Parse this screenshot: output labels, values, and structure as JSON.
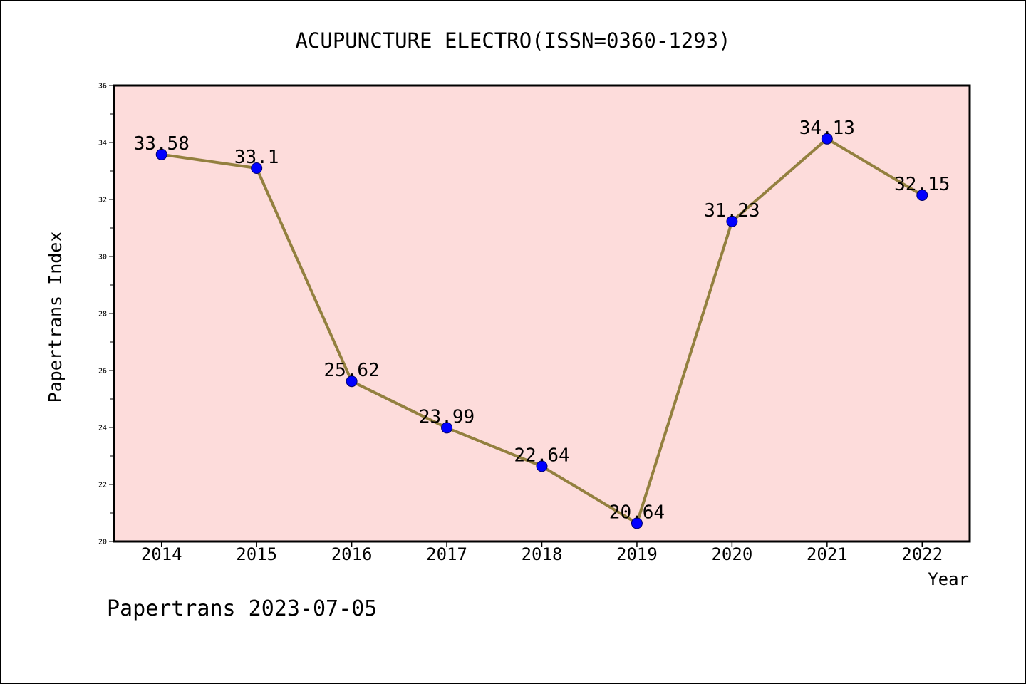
{
  "chart_data": {
    "type": "line",
    "title": "ACUPUNCTURE ELECTRO(ISSN=0360-1293)",
    "xlabel": "Year",
    "ylabel": "Papertrans Index",
    "categories": [
      "2014",
      "2015",
      "2016",
      "2017",
      "2018",
      "2019",
      "2020",
      "2021",
      "2022"
    ],
    "series": [
      {
        "values": [
          33.58,
          33.1,
          25.62,
          23.99,
          22.64,
          20.64,
          31.23,
          34.13,
          32.15
        ]
      }
    ],
    "ylim": [
      20,
      36
    ],
    "yticks": [
      20,
      22,
      24,
      26,
      28,
      30,
      32,
      34,
      36
    ],
    "grid": false,
    "data_labels": true,
    "colors": {
      "line": "#93803f",
      "marker": "#0000ff",
      "marker_edge": "#00006b",
      "plot_background": "#fddcdb",
      "axes": "#000000"
    }
  },
  "footer": {
    "note": "Papertrans 2023-07-05"
  }
}
